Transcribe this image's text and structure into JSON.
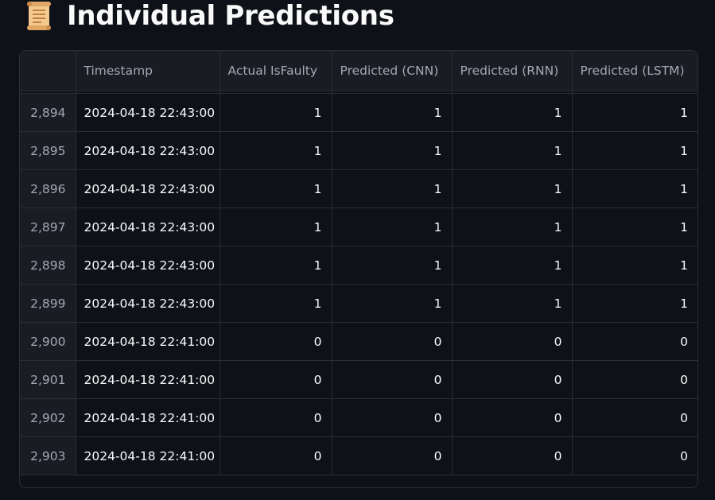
{
  "heading": {
    "icon": "scroll-icon",
    "title": "Individual Predictions"
  },
  "table": {
    "columns": [
      "",
      "Timestamp",
      "Actual IsFaulty",
      "Predicted (CNN)",
      "Predicted (RNN)",
      "Predicted (LSTM)"
    ],
    "rows": [
      {
        "index": "2,894",
        "timestamp": "2024-04-18 22:43:00",
        "actual": "1",
        "cnn": "1",
        "rnn": "1",
        "lstm": "1"
      },
      {
        "index": "2,895",
        "timestamp": "2024-04-18 22:43:00",
        "actual": "1",
        "cnn": "1",
        "rnn": "1",
        "lstm": "1"
      },
      {
        "index": "2,896",
        "timestamp": "2024-04-18 22:43:00",
        "actual": "1",
        "cnn": "1",
        "rnn": "1",
        "lstm": "1"
      },
      {
        "index": "2,897",
        "timestamp": "2024-04-18 22:43:00",
        "actual": "1",
        "cnn": "1",
        "rnn": "1",
        "lstm": "1"
      },
      {
        "index": "2,898",
        "timestamp": "2024-04-18 22:43:00",
        "actual": "1",
        "cnn": "1",
        "rnn": "1",
        "lstm": "1"
      },
      {
        "index": "2,899",
        "timestamp": "2024-04-18 22:43:00",
        "actual": "1",
        "cnn": "1",
        "rnn": "1",
        "lstm": "1"
      },
      {
        "index": "2,900",
        "timestamp": "2024-04-18 22:41:00",
        "actual": "0",
        "cnn": "0",
        "rnn": "0",
        "lstm": "0"
      },
      {
        "index": "2,901",
        "timestamp": "2024-04-18 22:41:00",
        "actual": "0",
        "cnn": "0",
        "rnn": "0",
        "lstm": "0"
      },
      {
        "index": "2,902",
        "timestamp": "2024-04-18 22:41:00",
        "actual": "0",
        "cnn": "0",
        "rnn": "0",
        "lstm": "0"
      },
      {
        "index": "2,903",
        "timestamp": "2024-04-18 22:41:00",
        "actual": "0",
        "cnn": "0",
        "rnn": "0",
        "lstm": "0"
      }
    ]
  },
  "colors": {
    "background": "#0e1117",
    "header_background": "#1a1c24",
    "border": "#2a2d35",
    "text": "#fafafa",
    "muted_text": "#a3a8b4"
  }
}
